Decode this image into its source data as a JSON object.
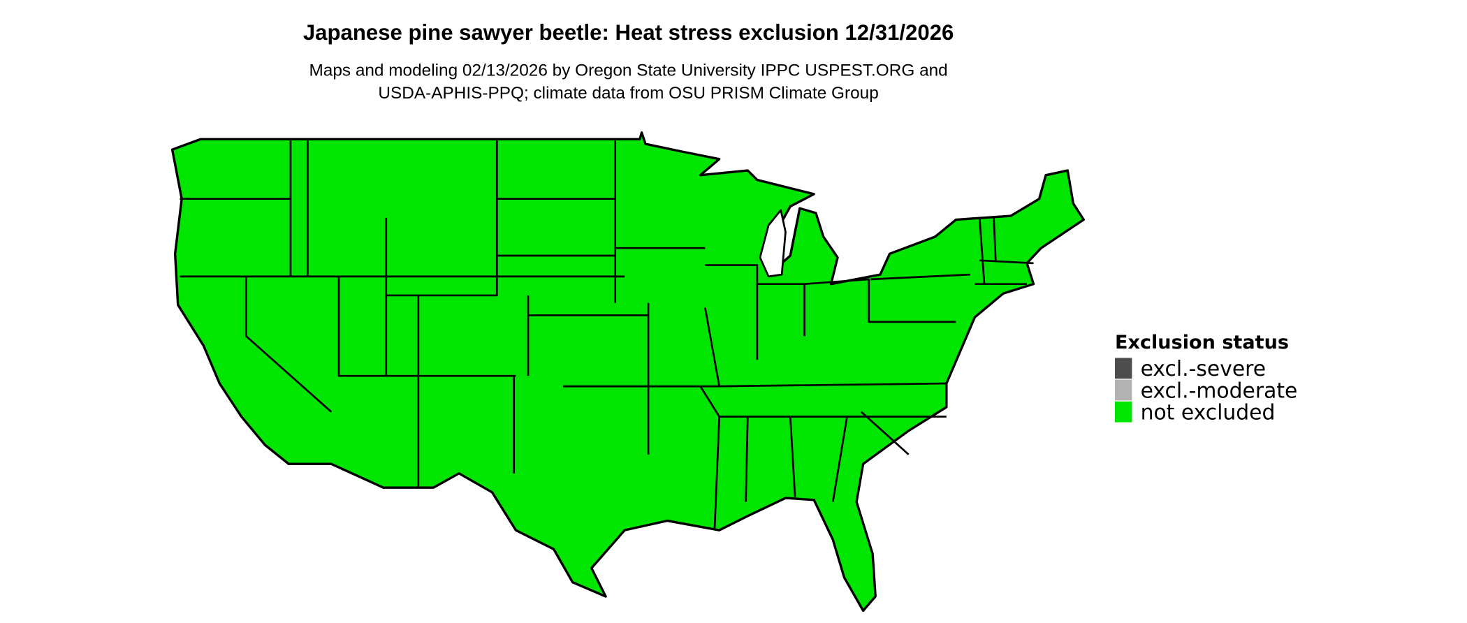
{
  "title": "Japanese pine sawyer beetle: Heat stress exclusion 12/31/2026",
  "subtitle": [
    "Maps and modeling 02/13/2026 by Oregon State University IPPC USPEST.ORG and",
    "USDA-APHIS-PPQ; climate data from OSU PRISM Climate Group"
  ],
  "legend": {
    "title": "Exclusion status",
    "items": [
      {
        "label": "excl.-severe",
        "color": "#4d4d4d"
      },
      {
        "label": "excl.-moderate",
        "color": "#b3b3b3"
      },
      {
        "label": "not excluded",
        "color": "#00e600"
      }
    ]
  }
}
